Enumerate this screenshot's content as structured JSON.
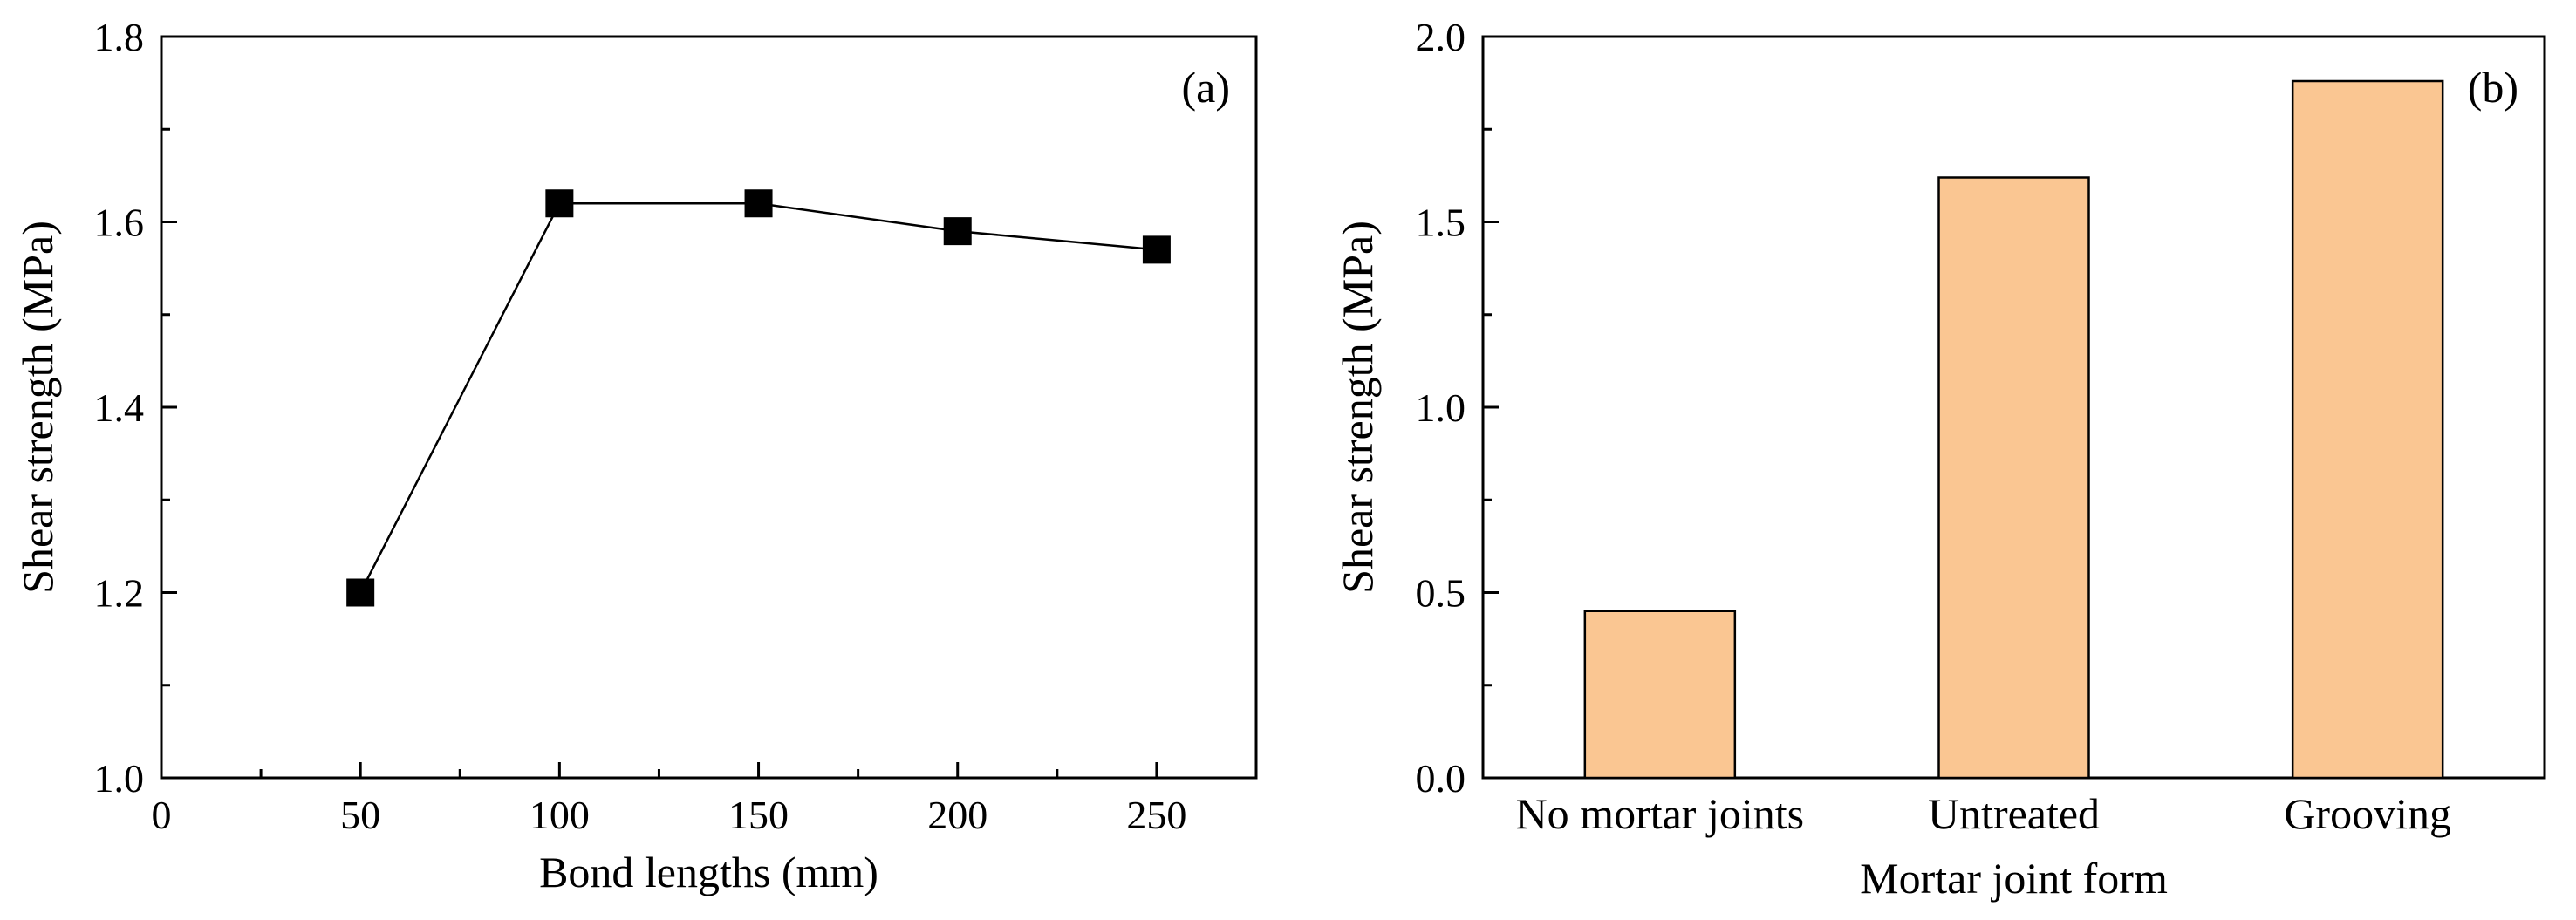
{
  "colors": {
    "axis": "#000000",
    "bar_fill": "#fac692",
    "marker": "#000000",
    "line": "#000000"
  },
  "chart_data": [
    {
      "type": "line",
      "panel_label": "(a)",
      "xlabel": "Bond lengths (mm)",
      "ylabel": "Shear strength (MPa)",
      "xlim": [
        0,
        275
      ],
      "ylim": [
        1.0,
        1.8
      ],
      "x_ticks": [
        0,
        50,
        100,
        150,
        200,
        250
      ],
      "x_tick_labels": [
        "0",
        "50",
        "100",
        "150",
        "200",
        "250"
      ],
      "y_ticks": [
        1.0,
        1.2,
        1.4,
        1.6,
        1.8
      ],
      "y_tick_labels": [
        "1.0",
        "1.2",
        "1.4",
        "1.6",
        "1.8"
      ],
      "grid": false,
      "series": [
        {
          "x": [
            50,
            100,
            150,
            200,
            250
          ],
          "y": [
            1.2,
            1.62,
            1.62,
            1.59,
            1.57
          ],
          "marker": "square"
        }
      ]
    },
    {
      "type": "bar",
      "panel_label": "(b)",
      "xlabel": "Mortar joint form",
      "ylabel": "Shear strength (MPa)",
      "categories": [
        "No mortar joints",
        "Untreated",
        "Grooving"
      ],
      "values": [
        0.45,
        1.62,
        1.88
      ],
      "ylim": [
        0.0,
        2.0
      ],
      "y_ticks": [
        0.0,
        0.5,
        1.0,
        1.5,
        2.0
      ],
      "y_tick_labels": [
        "0.0",
        "0.5",
        "1.0",
        "1.5",
        "2.0"
      ],
      "grid": false
    }
  ]
}
